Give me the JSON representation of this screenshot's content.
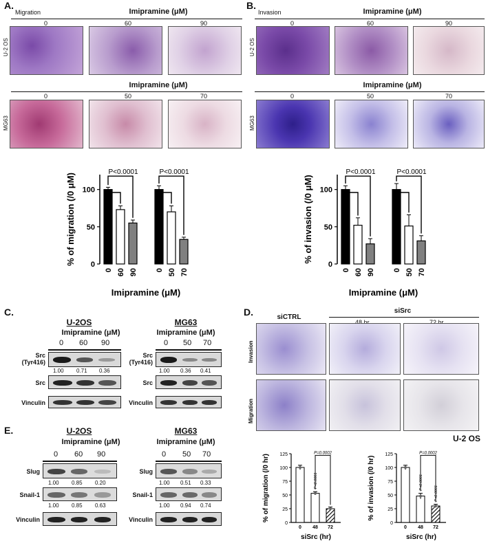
{
  "panels": {
    "A": "A.",
    "B": "B.",
    "C": "C.",
    "D": "D.",
    "E": "E."
  },
  "panelA": {
    "corner_label": "Migration",
    "row1": {
      "header": "Imipramine (μM)",
      "doses": [
        "0",
        "60",
        "90"
      ],
      "cell_label": "U-2 OS"
    },
    "row2": {
      "header": "Imipramine (μM)",
      "doses": [
        "0",
        "50",
        "70"
      ],
      "cell_label": "MG63"
    }
  },
  "panelB": {
    "corner_label": "Invasion",
    "row1": {
      "header": "Imipramine (μM)",
      "doses": [
        "0",
        "60",
        "90"
      ],
      "cell_label": "U-2 OS"
    },
    "row2": {
      "header": "Imipramine (μM)",
      "doses": [
        "0",
        "50",
        "70"
      ],
      "cell_label": "MG63"
    }
  },
  "chart_data": [
    {
      "type": "bar",
      "id": "A-migration",
      "ylabel": "% of migration (/0 μM)",
      "xlabel": "Imipramine (μM)",
      "ylim": [
        0,
        120
      ],
      "yticks": [
        0,
        50,
        100
      ],
      "categories": [
        "0",
        "60",
        "90",
        "0",
        "50",
        "70"
      ],
      "values": [
        100,
        73,
        55,
        100,
        70,
        33
      ],
      "errors": [
        3,
        5,
        4,
        5,
        8,
        3
      ],
      "colors": [
        "#000000",
        "#ffffff",
        "#808080",
        "#000000",
        "#ffffff",
        "#808080"
      ],
      "pvalues": [
        "P<0.0001",
        "P<0.0001"
      ]
    },
    {
      "type": "bar",
      "id": "B-invasion",
      "ylabel": "% of invasion (/0 μM)",
      "xlabel": "Imipramine (μM)",
      "ylim": [
        0,
        120
      ],
      "yticks": [
        0,
        50,
        100
      ],
      "categories": [
        "0",
        "60",
        "90",
        "0",
        "50",
        "70"
      ],
      "values": [
        100,
        52,
        27,
        100,
        51,
        31
      ],
      "errors": [
        5,
        10,
        7,
        8,
        15,
        7
      ],
      "colors": [
        "#000000",
        "#ffffff",
        "#808080",
        "#000000",
        "#ffffff",
        "#808080"
      ],
      "pvalues": [
        "P<0.0001",
        "P<0.0001"
      ]
    },
    {
      "type": "bar",
      "id": "D-migration",
      "ylabel": "% of migration (/0 hr)",
      "xlabel": "siSrc (hr)",
      "ylim": [
        0,
        125
      ],
      "yticks": [
        0,
        25,
        50,
        75,
        100,
        125
      ],
      "categories": [
        "0",
        "48",
        "72"
      ],
      "values": [
        100,
        53,
        25
      ],
      "errors": [
        4,
        3,
        3
      ],
      "pvalues": [
        "P=0.0002",
        "P<0.0001"
      ]
    },
    {
      "type": "bar",
      "id": "D-invasion",
      "ylabel": "% of invasion (/0 hr)",
      "xlabel": "siSrc (hr)",
      "ylim": [
        0,
        125
      ],
      "yticks": [
        0,
        25,
        50,
        75,
        100,
        125
      ],
      "categories": [
        "0",
        "48",
        "72"
      ],
      "values": [
        100,
        48,
        30
      ],
      "errors": [
        4,
        5,
        3
      ],
      "pvalues": [
        "P=0.0002",
        "P<0.0001",
        "P<0.0001"
      ]
    }
  ],
  "panelC": {
    "left": {
      "title": "U-2OS",
      "treatment": "Imipramine (μM)",
      "doses": [
        "0",
        "60",
        "90"
      ],
      "rows": [
        {
          "label": "Src\n(Tyr416)",
          "quant": [
            "1.00",
            "0.71",
            "0.36"
          ]
        },
        {
          "label": "Src"
        },
        {
          "label": "Vinculin"
        }
      ]
    },
    "right": {
      "title": "MG63",
      "treatment": "Imipramine (μM)",
      "doses": [
        "0",
        "50",
        "70"
      ],
      "rows": [
        {
          "label": "Src\n(Tyr416)",
          "quant": [
            "1.00",
            "0.36",
            "0.41"
          ]
        },
        {
          "label": "Src"
        },
        {
          "label": "Vinculin"
        }
      ]
    }
  },
  "panelD": {
    "groups": [
      "siCTRL",
      "siSrc"
    ],
    "times": [
      "48 hr",
      "72 hr"
    ],
    "rows": [
      "Invasion",
      "Migration"
    ],
    "cell_line": "U-2 OS"
  },
  "panelE": {
    "left": {
      "title": "U-2OS",
      "treatment": "Imipramine (μM)",
      "doses": [
        "0",
        "60",
        "90"
      ],
      "rows": [
        {
          "label": "Slug",
          "quant": [
            "1.00",
            "0.85",
            "0.20"
          ]
        },
        {
          "label": "Snail-1",
          "quant": [
            "1.00",
            "0.85",
            "0.63"
          ]
        },
        {
          "label": "Vinculin"
        }
      ]
    },
    "right": {
      "title": "MG63",
      "treatment": "Imipramine (μM)",
      "doses": [
        "0",
        "50",
        "70"
      ],
      "rows": [
        {
          "label": "Slug",
          "quant": [
            "1.00",
            "0.51",
            "0.33"
          ]
        },
        {
          "label": "Snail-1",
          "quant": [
            "1.00",
            "0.94",
            "0.74"
          ]
        },
        {
          "label": "Vinculin"
        }
      ]
    }
  }
}
